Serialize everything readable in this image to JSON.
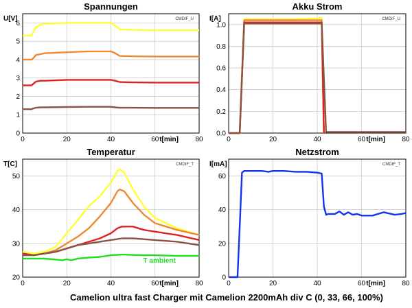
{
  "footer": "Camelion ultra fast Charger mit Camelion 2200mAh div C (0, 33, 66, 100%)",
  "chart_data": [
    {
      "id": "spannungen",
      "type": "line",
      "title": "Spannungen",
      "ylabel": "U[V]",
      "xlabel": "t[min]",
      "tag": "CMDIF_U",
      "xlim": [
        0,
        80
      ],
      "ylim": [
        0,
        6.5
      ],
      "xticks": [
        0,
        20,
        40,
        60,
        80
      ],
      "yticks": [
        0,
        1,
        2,
        3,
        4,
        5,
        6
      ],
      "series": [
        {
          "color": "#ffff33",
          "x": [
            0,
            4,
            5,
            6,
            8,
            10,
            20,
            30,
            40,
            42,
            44,
            50,
            60,
            70,
            80
          ],
          "y": [
            5.3,
            5.3,
            5.55,
            5.75,
            5.9,
            5.95,
            6.0,
            6.0,
            6.0,
            5.85,
            5.65,
            5.62,
            5.6,
            5.6,
            5.6
          ]
        },
        {
          "color": "#ee8833",
          "x": [
            0,
            4,
            5,
            6,
            8,
            10,
            20,
            30,
            40,
            42,
            44,
            50,
            60,
            70,
            80
          ],
          "y": [
            4.0,
            4.0,
            4.1,
            4.25,
            4.3,
            4.35,
            4.4,
            4.45,
            4.45,
            4.35,
            4.2,
            4.18,
            4.17,
            4.17,
            4.17
          ]
        },
        {
          "color": "#dd2222",
          "x": [
            0,
            4,
            5,
            6,
            8,
            10,
            20,
            30,
            40,
            42,
            44,
            50,
            60,
            70,
            80
          ],
          "y": [
            2.6,
            2.6,
            2.7,
            2.8,
            2.85,
            2.85,
            2.9,
            2.9,
            2.9,
            2.85,
            2.78,
            2.76,
            2.75,
            2.75,
            2.75
          ]
        },
        {
          "color": "#885544",
          "x": [
            0,
            4,
            5,
            6,
            8,
            10,
            20,
            30,
            40,
            42,
            44,
            50,
            60,
            70,
            80
          ],
          "y": [
            1.3,
            1.3,
            1.35,
            1.38,
            1.4,
            1.4,
            1.42,
            1.43,
            1.43,
            1.4,
            1.38,
            1.38,
            1.37,
            1.37,
            1.37
          ]
        }
      ]
    },
    {
      "id": "akku-strom",
      "type": "line",
      "title": "Akku Strom",
      "ylabel": "I[A]",
      "xlabel": "t[min]",
      "tag": "CMDIF_U",
      "xlim": [
        0,
        80
      ],
      "ylim": [
        0,
        1.1
      ],
      "xticks": [
        0,
        20,
        40,
        60,
        80
      ],
      "yticks": [
        0.0,
        0.2,
        0.4,
        0.6,
        0.8,
        1.0
      ],
      "series": [
        {
          "color": "#ffff33",
          "x": [
            0,
            5,
            7,
            10,
            20,
            30,
            42,
            43
          ],
          "y": [
            0,
            0,
            1.05,
            1.05,
            1.05,
            1.05,
            1.06,
            0
          ]
        },
        {
          "color": "#ee8833",
          "x": [
            0,
            5,
            7,
            10,
            20,
            30,
            42,
            43
          ],
          "y": [
            0,
            0,
            1.04,
            1.04,
            1.04,
            1.04,
            1.04,
            0
          ]
        },
        {
          "color": "#dd2222",
          "x": [
            0,
            5,
            7,
            10,
            20,
            30,
            42,
            43
          ],
          "y": [
            0,
            0,
            1.02,
            1.02,
            1.02,
            1.02,
            1.02,
            0
          ]
        },
        {
          "color": "#885544",
          "x": [
            0,
            5,
            7,
            10,
            20,
            30,
            42,
            44,
            46,
            50,
            60,
            70,
            80
          ],
          "y": [
            0,
            0,
            1.01,
            1.01,
            1.01,
            1.01,
            1.01,
            0.01,
            0.01,
            0.01,
            0.01,
            0.01,
            0.01
          ]
        }
      ]
    },
    {
      "id": "temperatur",
      "type": "line",
      "title": "Temperatur",
      "ylabel": "T[C]",
      "xlabel": "t[min]",
      "tag": "CMDIF_T",
      "xlim": [
        0,
        80
      ],
      "ylim": [
        20,
        55
      ],
      "xticks": [
        0,
        20,
        40,
        60,
        80
      ],
      "yticks": [
        20,
        30,
        40,
        50
      ],
      "annotation": {
        "text": "T ambient",
        "color": "#22dd22",
        "x": 62,
        "y": 24.3
      },
      "series": [
        {
          "color": "#ffff33",
          "x": [
            0,
            5,
            10,
            15,
            20,
            25,
            30,
            35,
            40,
            43,
            44,
            46,
            50,
            55,
            60,
            70,
            80
          ],
          "y": [
            27.5,
            27,
            27.5,
            29,
            33,
            37,
            41,
            44,
            48,
            51.5,
            52,
            51,
            46,
            41,
            37.5,
            34.5,
            32.5
          ]
        },
        {
          "color": "#ee8833",
          "x": [
            0,
            5,
            10,
            15,
            20,
            25,
            30,
            35,
            40,
            43,
            44,
            46,
            50,
            55,
            60,
            70,
            80
          ],
          "y": [
            27,
            26.5,
            27,
            28,
            30,
            32,
            34.5,
            38,
            42,
            45.5,
            46,
            45.5,
            42,
            38.5,
            36,
            34,
            32.5
          ]
        },
        {
          "color": "#dd2222",
          "x": [
            0,
            5,
            10,
            15,
            20,
            25,
            30,
            35,
            40,
            43,
            45,
            50,
            55,
            60,
            70,
            80
          ],
          "y": [
            27,
            26.5,
            27,
            27.5,
            28.5,
            29.5,
            30.5,
            31.5,
            33,
            34.5,
            35,
            35,
            34,
            33.5,
            32.5,
            31
          ]
        },
        {
          "color": "#885544",
          "x": [
            0,
            5,
            10,
            15,
            20,
            25,
            30,
            35,
            40,
            45,
            50,
            60,
            70,
            80
          ],
          "y": [
            26.5,
            26.5,
            27,
            27.5,
            28.5,
            29.5,
            30,
            30.5,
            31,
            31.5,
            31.5,
            31,
            30.5,
            29.5
          ]
        },
        {
          "color": "#22dd22",
          "x": [
            0,
            5,
            10,
            15,
            18,
            20,
            22,
            25,
            30,
            35,
            40,
            45,
            50,
            55,
            60,
            70,
            80
          ],
          "y": [
            25.5,
            25.5,
            25.5,
            25.2,
            25,
            25.3,
            25,
            25.5,
            25.8,
            26,
            26.5,
            26.7,
            26.6,
            26.5,
            26.5,
            26.3,
            26.3
          ]
        }
      ]
    },
    {
      "id": "netzstrom",
      "type": "line",
      "title": "Netzstrom",
      "ylabel": "I[mA]",
      "xlabel": "t[min]",
      "tag": "CMDIF_T",
      "xlim": [
        0,
        80
      ],
      "ylim": [
        0,
        70
      ],
      "xticks": [
        0,
        20,
        40,
        60,
        80
      ],
      "yticks": [
        0,
        20,
        40,
        60
      ],
      "series": [
        {
          "color": "#1133ee",
          "x": [
            0,
            4,
            5,
            6,
            7,
            10,
            15,
            18,
            20,
            25,
            30,
            35,
            40,
            42,
            43,
            44,
            45,
            48,
            50,
            52,
            54,
            56,
            58,
            60,
            65,
            70,
            75,
            78,
            80
          ],
          "y": [
            0,
            0,
            30,
            62,
            63,
            63,
            63,
            62.5,
            63,
            63,
            62.5,
            62.5,
            62,
            61.5,
            42,
            37,
            37.5,
            37.5,
            39,
            37,
            38.5,
            37,
            37.5,
            36.5,
            36.5,
            38.5,
            37,
            37.5,
            38
          ]
        }
      ]
    }
  ]
}
